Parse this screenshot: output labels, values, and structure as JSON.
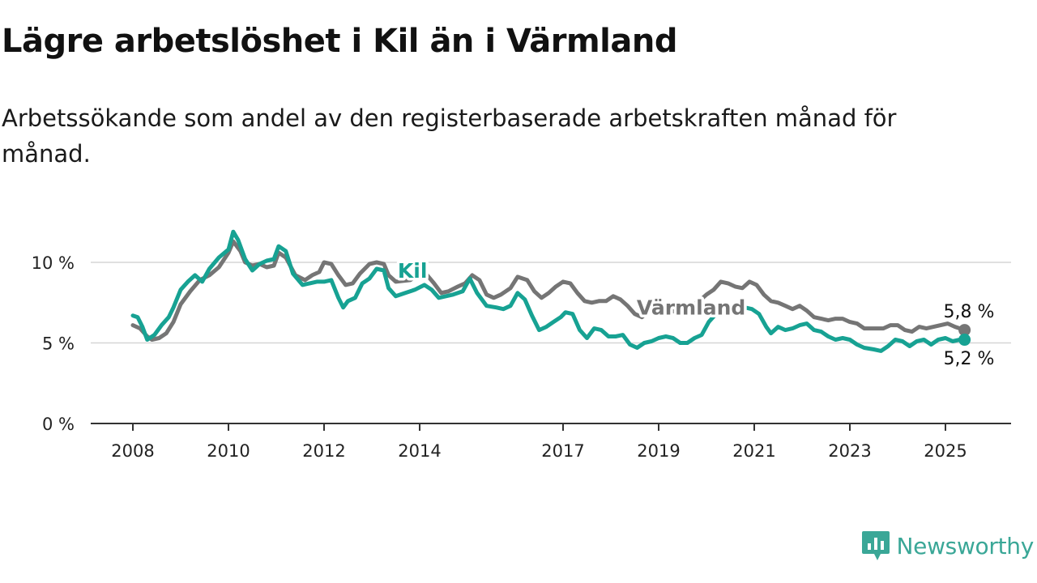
{
  "title": "Lägre arbetslöshet i Kil än i Värmland",
  "subtitle": "Arbetssökande som andel av den registerbaserade arbetskraften månad för månad.",
  "brand": {
    "name": "Newsworthy",
    "color": "#3aa797",
    "icon": "newsworthy-bar-chart-logo-icon"
  },
  "chart_data": {
    "type": "line",
    "unit": "%",
    "x_range": [
      2007.5,
      2026.3
    ],
    "y_range": [
      0,
      13
    ],
    "grid": true,
    "y_ticks": [
      {
        "value": 0,
        "label": "0 %"
      },
      {
        "value": 5,
        "label": "5 %"
      },
      {
        "value": 10,
        "label": "10 %"
      }
    ],
    "x_ticks": [
      {
        "value": 2008,
        "label": "2008"
      },
      {
        "value": 2010,
        "label": "2010"
      },
      {
        "value": 2012,
        "label": "2012"
      },
      {
        "value": 2014,
        "label": "2014"
      },
      {
        "value": 2017,
        "label": "2017"
      },
      {
        "value": 2019,
        "label": "2019"
      },
      {
        "value": 2021,
        "label": "2021"
      },
      {
        "value": 2023,
        "label": "2023"
      },
      {
        "value": 2025,
        "label": "2025"
      }
    ],
    "series": [
      {
        "name": "Värmland",
        "color": "#757575",
        "end_label": "5,8 %",
        "points": [
          [
            2008.0,
            6.1
          ],
          [
            2008.15,
            5.9
          ],
          [
            2008.3,
            5.4
          ],
          [
            2008.4,
            5.2
          ],
          [
            2008.55,
            5.3
          ],
          [
            2008.7,
            5.6
          ],
          [
            2008.85,
            6.3
          ],
          [
            2009.0,
            7.4
          ],
          [
            2009.2,
            8.2
          ],
          [
            2009.4,
            8.9
          ],
          [
            2009.6,
            9.2
          ],
          [
            2009.8,
            9.7
          ],
          [
            2010.0,
            10.6
          ],
          [
            2010.1,
            11.3
          ],
          [
            2010.25,
            10.7
          ],
          [
            2010.35,
            10.0
          ],
          [
            2010.5,
            9.8
          ],
          [
            2010.65,
            9.9
          ],
          [
            2010.8,
            9.7
          ],
          [
            2010.95,
            9.8
          ],
          [
            2011.05,
            10.6
          ],
          [
            2011.2,
            10.3
          ],
          [
            2011.4,
            9.2
          ],
          [
            2011.6,
            8.9
          ],
          [
            2011.75,
            9.2
          ],
          [
            2011.9,
            9.4
          ],
          [
            2012.0,
            10.0
          ],
          [
            2012.15,
            9.9
          ],
          [
            2012.3,
            9.2
          ],
          [
            2012.45,
            8.6
          ],
          [
            2012.6,
            8.7
          ],
          [
            2012.75,
            9.3
          ],
          [
            2012.95,
            9.9
          ],
          [
            2013.1,
            10.0
          ],
          [
            2013.25,
            9.9
          ],
          [
            2013.35,
            9.2
          ],
          [
            2013.5,
            8.8
          ],
          [
            2013.8,
            8.9
          ],
          [
            2014.1,
            9.4
          ],
          [
            2014.3,
            8.7
          ],
          [
            2014.45,
            8.1
          ],
          [
            2014.6,
            8.2
          ],
          [
            2014.8,
            8.5
          ],
          [
            2014.95,
            8.7
          ],
          [
            2015.1,
            9.2
          ],
          [
            2015.25,
            8.9
          ],
          [
            2015.4,
            8.0
          ],
          [
            2015.55,
            7.8
          ],
          [
            2015.7,
            8.0
          ],
          [
            2015.9,
            8.4
          ],
          [
            2016.05,
            9.1
          ],
          [
            2016.25,
            8.9
          ],
          [
            2016.4,
            8.2
          ],
          [
            2016.55,
            7.8
          ],
          [
            2016.7,
            8.1
          ],
          [
            2016.85,
            8.5
          ],
          [
            2017.0,
            8.8
          ],
          [
            2017.15,
            8.7
          ],
          [
            2017.3,
            8.1
          ],
          [
            2017.45,
            7.6
          ],
          [
            2017.6,
            7.5
          ],
          [
            2017.75,
            7.6
          ],
          [
            2017.9,
            7.6
          ],
          [
            2018.05,
            7.9
          ],
          [
            2018.2,
            7.7
          ],
          [
            2018.35,
            7.3
          ],
          [
            2018.5,
            6.8
          ],
          [
            2018.65,
            6.6
          ],
          [
            2018.8,
            7.0
          ],
          [
            2018.95,
            7.3
          ],
          [
            2019.1,
            7.3
          ],
          [
            2019.25,
            7.0
          ],
          [
            2019.4,
            6.9
          ],
          [
            2019.55,
            7.1
          ],
          [
            2019.7,
            7.3
          ],
          [
            2019.85,
            7.6
          ],
          [
            2020.0,
            8.0
          ],
          [
            2020.15,
            8.3
          ],
          [
            2020.3,
            8.8
          ],
          [
            2020.45,
            8.7
          ],
          [
            2020.6,
            8.5
          ],
          [
            2020.75,
            8.4
          ],
          [
            2020.9,
            8.8
          ],
          [
            2021.05,
            8.6
          ],
          [
            2021.2,
            8.0
          ],
          [
            2021.35,
            7.6
          ],
          [
            2021.5,
            7.5
          ],
          [
            2021.65,
            7.3
          ],
          [
            2021.8,
            7.1
          ],
          [
            2021.95,
            7.3
          ],
          [
            2022.1,
            7.0
          ],
          [
            2022.25,
            6.6
          ],
          [
            2022.4,
            6.5
          ],
          [
            2022.55,
            6.4
          ],
          [
            2022.7,
            6.5
          ],
          [
            2022.85,
            6.5
          ],
          [
            2023.0,
            6.3
          ],
          [
            2023.15,
            6.2
          ],
          [
            2023.3,
            5.9
          ],
          [
            2023.5,
            5.9
          ],
          [
            2023.7,
            5.9
          ],
          [
            2023.85,
            6.1
          ],
          [
            2024.0,
            6.1
          ],
          [
            2024.15,
            5.8
          ],
          [
            2024.3,
            5.7
          ],
          [
            2024.45,
            6.0
          ],
          [
            2024.6,
            5.9
          ],
          [
            2024.75,
            6.0
          ],
          [
            2024.9,
            6.1
          ],
          [
            2025.05,
            6.2
          ],
          [
            2025.2,
            6.0
          ],
          [
            2025.4,
            5.8
          ]
        ]
      },
      {
        "name": "Kil",
        "color": "#17a293",
        "end_label": "5,2 %",
        "points": [
          [
            2008.0,
            6.7
          ],
          [
            2008.1,
            6.6
          ],
          [
            2008.2,
            6.0
          ],
          [
            2008.3,
            5.2
          ],
          [
            2008.45,
            5.5
          ],
          [
            2008.6,
            6.1
          ],
          [
            2008.75,
            6.6
          ],
          [
            2008.85,
            7.2
          ],
          [
            2009.0,
            8.3
          ],
          [
            2009.15,
            8.8
          ],
          [
            2009.3,
            9.2
          ],
          [
            2009.45,
            8.8
          ],
          [
            2009.6,
            9.6
          ],
          [
            2009.8,
            10.3
          ],
          [
            2010.0,
            10.8
          ],
          [
            2010.1,
            11.9
          ],
          [
            2010.2,
            11.4
          ],
          [
            2010.35,
            10.2
          ],
          [
            2010.5,
            9.5
          ],
          [
            2010.65,
            9.9
          ],
          [
            2010.8,
            10.1
          ],
          [
            2010.95,
            10.2
          ],
          [
            2011.05,
            11.0
          ],
          [
            2011.2,
            10.7
          ],
          [
            2011.35,
            9.3
          ],
          [
            2011.55,
            8.6
          ],
          [
            2011.7,
            8.7
          ],
          [
            2011.85,
            8.8
          ],
          [
            2012.0,
            8.8
          ],
          [
            2012.15,
            8.9
          ],
          [
            2012.3,
            7.8
          ],
          [
            2012.4,
            7.2
          ],
          [
            2012.5,
            7.6
          ],
          [
            2012.65,
            7.8
          ],
          [
            2012.8,
            8.7
          ],
          [
            2012.95,
            9.0
          ],
          [
            2013.1,
            9.6
          ],
          [
            2013.25,
            9.5
          ],
          [
            2013.35,
            8.4
          ],
          [
            2013.5,
            7.9
          ],
          [
            2013.7,
            8.1
          ],
          [
            2013.9,
            8.3
          ],
          [
            2014.1,
            8.6
          ],
          [
            2014.25,
            8.3
          ],
          [
            2014.4,
            7.8
          ],
          [
            2014.55,
            7.9
          ],
          [
            2014.7,
            8.0
          ],
          [
            2014.9,
            8.2
          ],
          [
            2015.05,
            9.0
          ],
          [
            2015.2,
            8.1
          ],
          [
            2015.4,
            7.3
          ],
          [
            2015.6,
            7.2
          ],
          [
            2015.75,
            7.1
          ],
          [
            2015.9,
            7.3
          ],
          [
            2016.05,
            8.1
          ],
          [
            2016.2,
            7.7
          ],
          [
            2016.35,
            6.7
          ],
          [
            2016.5,
            5.8
          ],
          [
            2016.65,
            6.0
          ],
          [
            2016.8,
            6.3
          ],
          [
            2016.95,
            6.6
          ],
          [
            2017.05,
            6.9
          ],
          [
            2017.2,
            6.8
          ],
          [
            2017.35,
            5.8
          ],
          [
            2017.5,
            5.3
          ],
          [
            2017.65,
            5.9
          ],
          [
            2017.8,
            5.8
          ],
          [
            2017.95,
            5.4
          ],
          [
            2018.1,
            5.4
          ],
          [
            2018.25,
            5.5
          ],
          [
            2018.4,
            4.9
          ],
          [
            2018.55,
            4.7
          ],
          [
            2018.7,
            5.0
          ],
          [
            2018.85,
            5.1
          ],
          [
            2019.0,
            5.3
          ],
          [
            2019.15,
            5.4
          ],
          [
            2019.3,
            5.3
          ],
          [
            2019.45,
            5.0
          ],
          [
            2019.6,
            5.0
          ],
          [
            2019.75,
            5.3
          ],
          [
            2019.9,
            5.5
          ],
          [
            2020.05,
            6.3
          ],
          [
            2020.2,
            6.8
          ],
          [
            2020.35,
            7.2
          ],
          [
            2020.5,
            7.0
          ],
          [
            2020.65,
            6.9
          ],
          [
            2020.8,
            7.2
          ],
          [
            2020.95,
            7.1
          ],
          [
            2021.1,
            6.8
          ],
          [
            2021.25,
            6.0
          ],
          [
            2021.35,
            5.6
          ],
          [
            2021.5,
            6.0
          ],
          [
            2021.65,
            5.8
          ],
          [
            2021.8,
            5.9
          ],
          [
            2021.95,
            6.1
          ],
          [
            2022.1,
            6.2
          ],
          [
            2022.25,
            5.8
          ],
          [
            2022.4,
            5.7
          ],
          [
            2022.55,
            5.4
          ],
          [
            2022.7,
            5.2
          ],
          [
            2022.85,
            5.3
          ],
          [
            2023.0,
            5.2
          ],
          [
            2023.15,
            4.9
          ],
          [
            2023.3,
            4.7
          ],
          [
            2023.5,
            4.6
          ],
          [
            2023.65,
            4.5
          ],
          [
            2023.8,
            4.8
          ],
          [
            2023.95,
            5.2
          ],
          [
            2024.1,
            5.1
          ],
          [
            2024.25,
            4.8
          ],
          [
            2024.4,
            5.1
          ],
          [
            2024.55,
            5.2
          ],
          [
            2024.7,
            4.9
          ],
          [
            2024.85,
            5.2
          ],
          [
            2025.0,
            5.3
          ],
          [
            2025.15,
            5.1
          ],
          [
            2025.3,
            5.2
          ],
          [
            2025.4,
            5.2
          ]
        ]
      }
    ],
    "inline_labels": [
      {
        "series": "Kil",
        "text": "Kil",
        "x": 2013.85,
        "y": 9.05
      },
      {
        "series": "Värmland",
        "text": "Värmland",
        "x": 2019.68,
        "y": 6.75
      }
    ]
  }
}
